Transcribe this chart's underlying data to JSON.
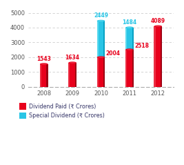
{
  "years": [
    "2008",
    "2009",
    "2010",
    "2011",
    "2012"
  ],
  "dividend_paid": [
    1543,
    1634,
    2004,
    2518,
    4089
  ],
  "special_dividend": [
    0,
    0,
    2449,
    1484,
    0
  ],
  "bar_color_red": "#e8001c",
  "bar_color_red_light": "#f05060",
  "bar_color_red_dark": "#8b0010",
  "bar_color_cyan": "#29c5e6",
  "bar_color_cyan_light": "#7de8f5",
  "bar_color_cyan_dark": "#0099bb",
  "label_color_red": "#e8001c",
  "label_color_cyan": "#29c5e6",
  "ylim": [
    0,
    5000
  ],
  "yticks": [
    0,
    1000,
    2000,
    3000,
    4000,
    5000
  ],
  "legend_label_red": "Dividend Paid (₹ Crores)",
  "legend_label_cyan": "Special Dividend (₹ Crores)",
  "background_color": "#ffffff",
  "bar_width": 0.28,
  "text_color_axes": "#555555",
  "grid_color": "#cccccc"
}
